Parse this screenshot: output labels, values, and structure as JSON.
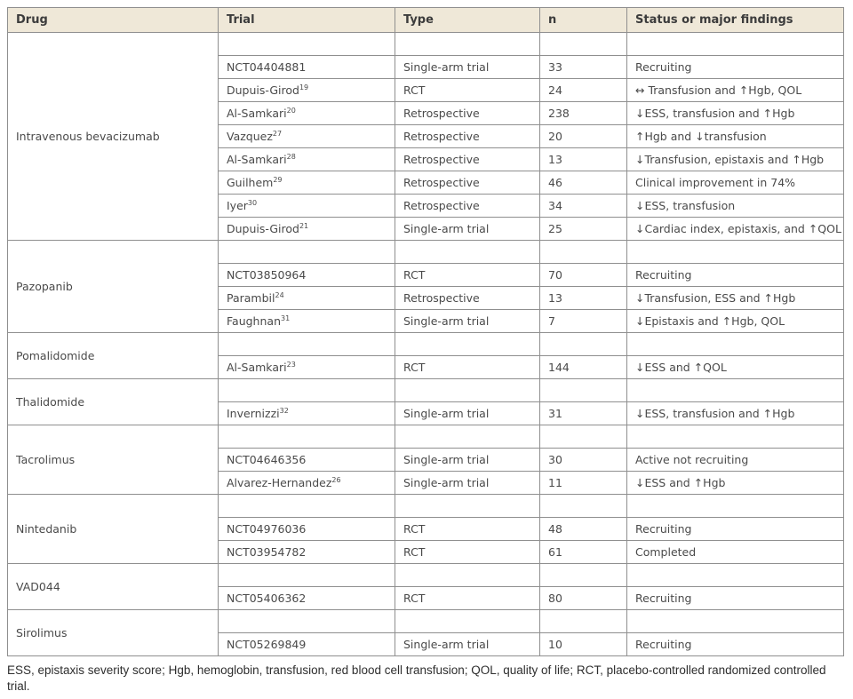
{
  "table": {
    "headers": [
      "Drug",
      "Trial",
      "Type",
      "n",
      "Status or major findings"
    ],
    "groups": [
      {
        "drug": "Intravenous bevacizumab",
        "trials": [
          {
            "trial": "NCT04404881",
            "sup": "",
            "type": "Single-arm trial",
            "n": "33",
            "finding": "Recruiting"
          },
          {
            "trial": "Dupuis-Girod",
            "sup": "19",
            "type": "RCT",
            "n": "24",
            "finding": "↔ Transfusion and ↑Hgb, QOL"
          },
          {
            "trial": "Al-Samkari",
            "sup": "20",
            "type": "Retrospective",
            "n": "238",
            "finding": "↓ESS, transfusion and ↑Hgb"
          },
          {
            "trial": "Vazquez",
            "sup": "27",
            "type": "Retrospective",
            "n": "20",
            "finding": "↑Hgb and ↓transfusion"
          },
          {
            "trial": "Al-Samkari",
            "sup": "28",
            "type": "Retrospective",
            "n": "13",
            "finding": "↓Transfusion, epistaxis and ↑Hgb"
          },
          {
            "trial": "Guilhem",
            "sup": "29",
            "type": "Retrospective",
            "n": "46",
            "finding": "Clinical improvement in 74%"
          },
          {
            "trial": "Iyer",
            "sup": "30",
            "type": "Retrospective",
            "n": "34",
            "finding": "↓ESS, transfusion"
          },
          {
            "trial": "Dupuis-Girod",
            "sup": "21",
            "type": "Single-arm trial",
            "n": "25",
            "finding": "↓Cardiac index, epistaxis, and ↑QOL"
          }
        ]
      },
      {
        "drug": "Pazopanib",
        "trials": [
          {
            "trial": "NCT03850964",
            "sup": "",
            "type": "RCT",
            "n": "70",
            "finding": "Recruiting"
          },
          {
            "trial": "Parambil",
            "sup": "24",
            "type": "Retrospective",
            "n": "13",
            "finding": "↓Transfusion, ESS and ↑Hgb"
          },
          {
            "trial": "Faughnan",
            "sup": "31",
            "type": "Single-arm trial",
            "n": "7",
            "finding": "↓Epistaxis and ↑Hgb, QOL"
          }
        ]
      },
      {
        "drug": "Pomalidomide",
        "trials": [
          {
            "trial": "Al-Samkari",
            "sup": "23",
            "type": "RCT",
            "n": "144",
            "finding": "↓ESS and ↑QOL"
          }
        ]
      },
      {
        "drug": "Thalidomide",
        "trials": [
          {
            "trial": "Invernizzi",
            "sup": "32",
            "type": "Single-arm trial",
            "n": "31",
            "finding": "↓ESS, transfusion and ↑Hgb"
          }
        ]
      },
      {
        "drug": "Tacrolimus",
        "trials": [
          {
            "trial": "NCT04646356",
            "sup": "",
            "type": "Single-arm trial",
            "n": "30",
            "finding": "Active not recruiting"
          },
          {
            "trial": "Alvarez-Hernandez",
            "sup": "26",
            "type": "Single-arm trial",
            "n": "11",
            "finding": "↓ESS and ↑Hgb"
          }
        ]
      },
      {
        "drug": "Nintedanib",
        "trials": [
          {
            "trial": "NCT04976036",
            "sup": "",
            "type": "RCT",
            "n": "48",
            "finding": "Recruiting"
          },
          {
            "trial": "NCT03954782",
            "sup": "",
            "type": "RCT",
            "n": "61",
            "finding": "Completed"
          }
        ]
      },
      {
        "drug": "VAD044",
        "trials": [
          {
            "trial": "NCT05406362",
            "sup": "",
            "type": "RCT",
            "n": "80",
            "finding": "Recruiting"
          }
        ]
      },
      {
        "drug": "Sirolimus",
        "trials": [
          {
            "trial": "NCT05269849",
            "sup": "",
            "type": "Single-arm trial",
            "n": "10",
            "finding": "Recruiting"
          }
        ]
      }
    ],
    "footnote": "ESS, epistaxis severity score; Hgb, hemoglobin, transfusion, red blood cell transfusion; QOL, quality of life; RCT, placebo-controlled randomized controlled trial.",
    "colors": {
      "header_bg": "#efe8d8",
      "border": "#8f8f8f",
      "text": "#4a4a4a"
    }
  }
}
